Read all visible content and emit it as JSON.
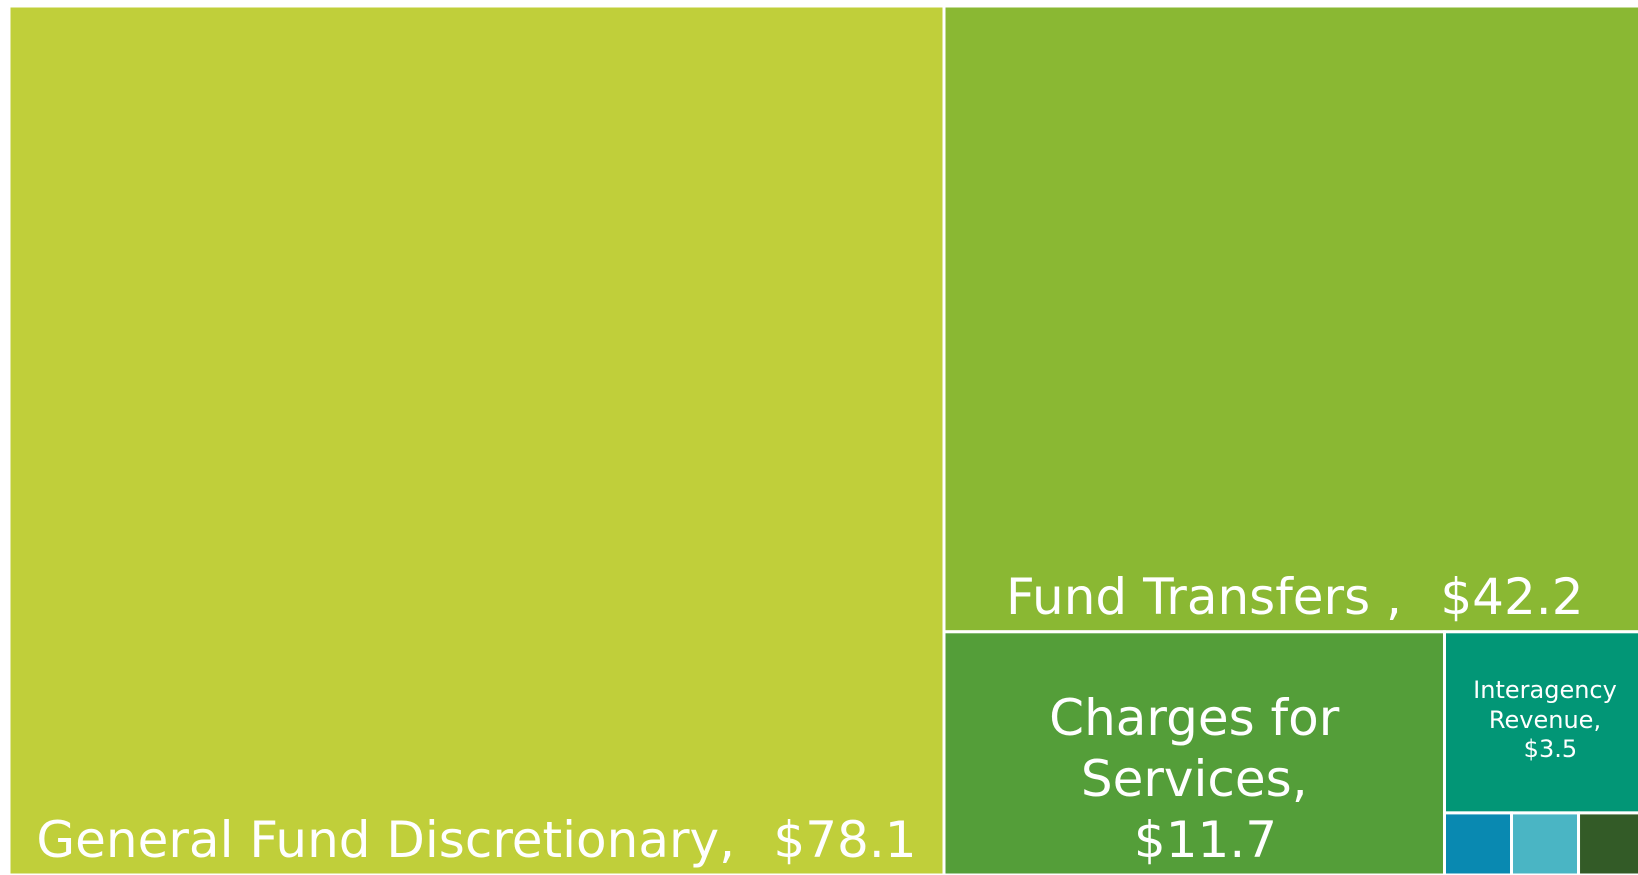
{
  "chart_data": {
    "type": "treemap",
    "categories": [
      "General Fund Discretionary,",
      "Fund Transfers ,",
      "Charges for Services,",
      "Interagency Revenue,",
      null,
      null,
      null
    ],
    "values": [
      78.1,
      42.2,
      11.7,
      3.5,
      0.4,
      0.4,
      0.4
    ],
    "value_labels": [
      "$78.1",
      "$42.2",
      "$11.7",
      "$3.5",
      null,
      null,
      null
    ],
    "colors": [
      "#c0cf3a",
      "#8ab833",
      "#549e39",
      "#029676",
      "#0989b1",
      "#4ab5c4",
      "#335b27"
    ]
  }
}
